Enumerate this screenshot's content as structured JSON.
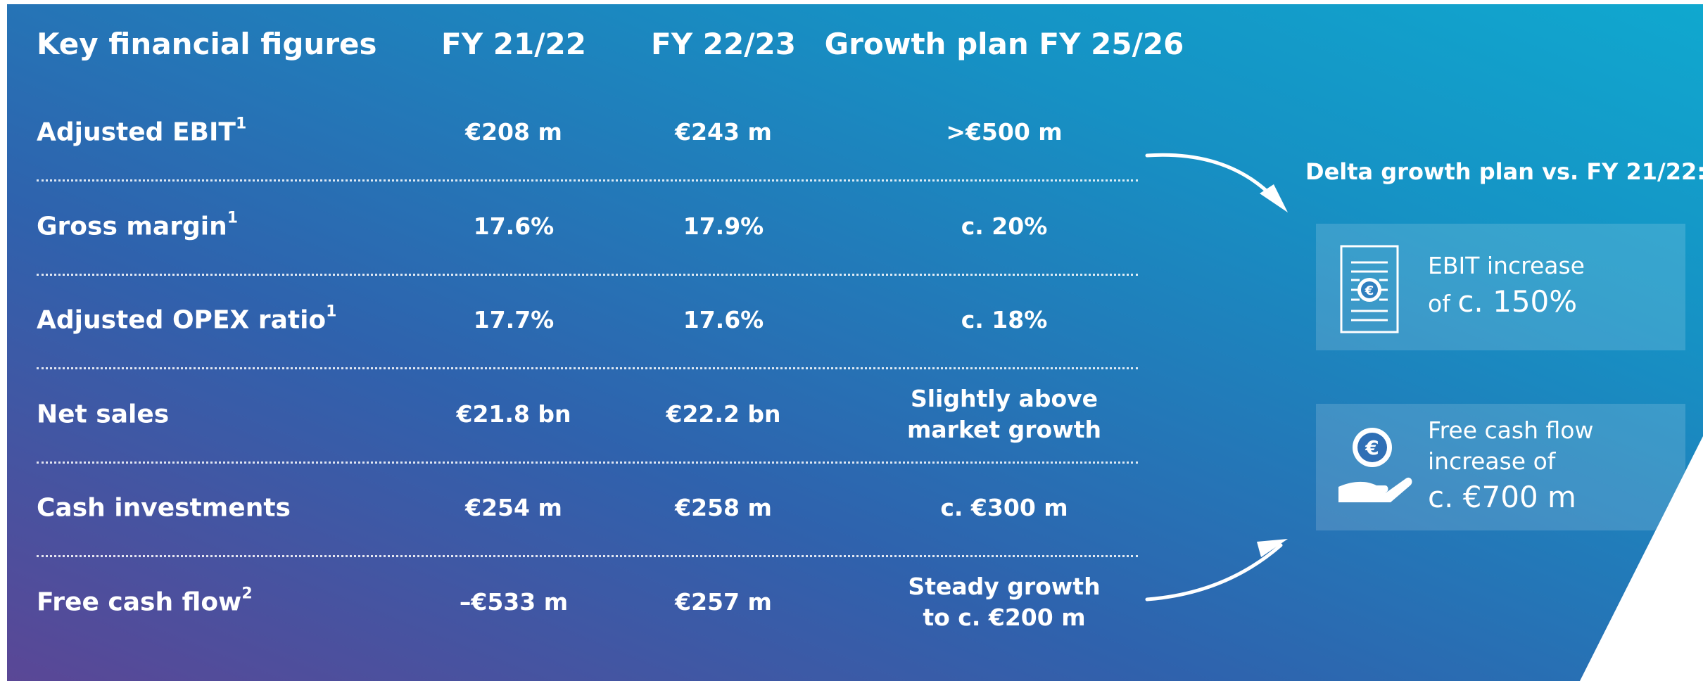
{
  "header": {
    "title": "Key financial figures",
    "columns": [
      "FY 21/22",
      "FY 22/23",
      "Growth plan FY 25/26"
    ]
  },
  "rows": [
    {
      "label": "Adjusted EBIT",
      "note": "1",
      "values": [
        "€208 m",
        "€243 m",
        ">€500 m"
      ]
    },
    {
      "label": "Gross margin",
      "note": "1",
      "values": [
        "17.6%",
        "17.9%",
        "c. 20%"
      ]
    },
    {
      "label": "Adjusted OPEX ratio",
      "note": "1",
      "values": [
        "17.7%",
        "17.6%",
        "c. 18%"
      ]
    },
    {
      "label": "Net sales",
      "values": [
        "€21.8 bn",
        "€22.2 bn",
        [
          "Slightly above",
          "market growth"
        ]
      ]
    },
    {
      "label": "Cash investments",
      "values": [
        "€254 m",
        "€258 m",
        "c. €300 m"
      ]
    },
    {
      "label": "Free cash flow",
      "note": "2",
      "values": [
        "–€533 m",
        "€257 m",
        [
          "Steady growth",
          "to c. €200 m"
        ]
      ]
    }
  ],
  "side": {
    "title": "Delta growth plan vs. FY 21/22:",
    "cards": [
      {
        "lines": [
          "EBIT increase",
          "of"
        ],
        "highlight": "c. 150%"
      },
      {
        "lines": [
          "Free cash flow",
          "increase of"
        ],
        "highlight": "c. €700 m"
      }
    ]
  }
}
